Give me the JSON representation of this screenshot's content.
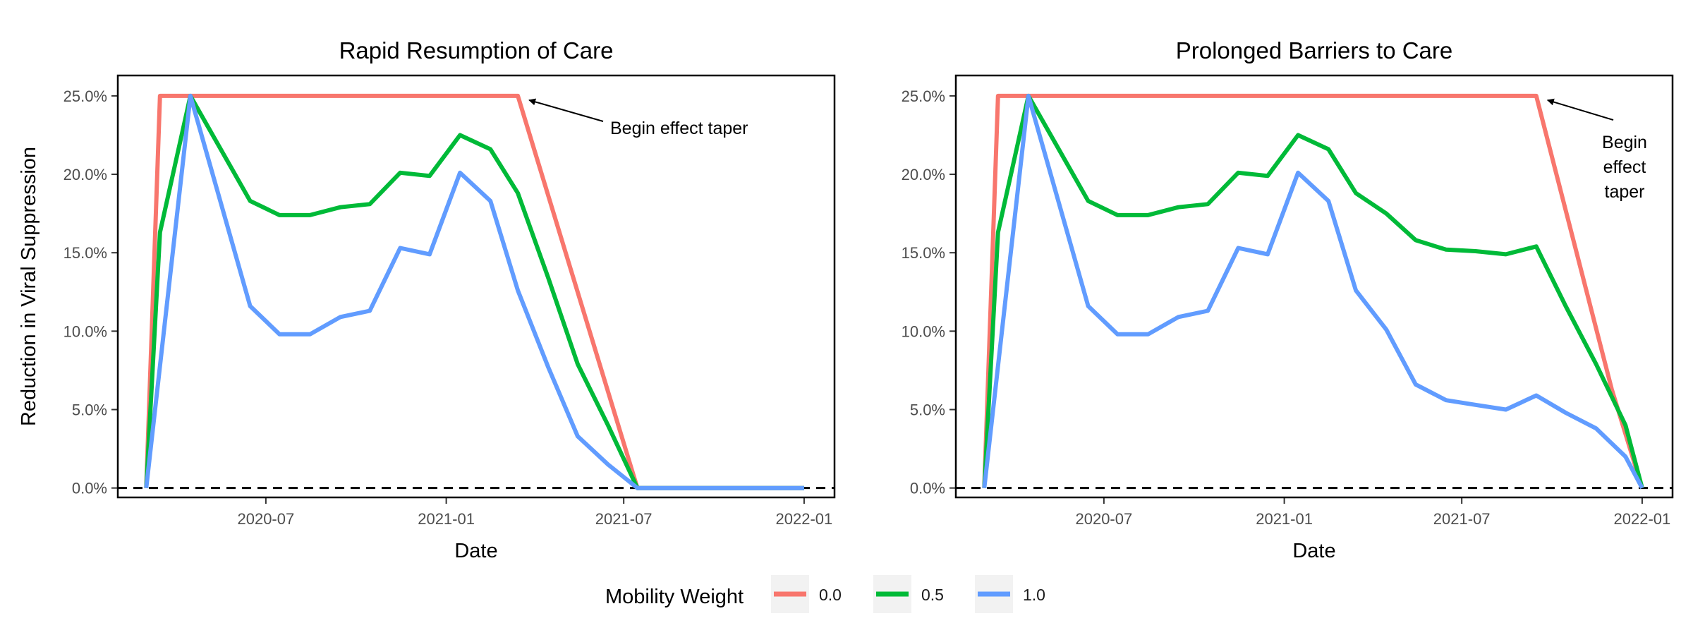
{
  "chart_data": [
    {
      "type": "line",
      "title": "Rapid Resumption of Care",
      "xlabel": "Date",
      "ylabel": "Reduction in Viral Suppression",
      "x_ticks": [
        "2020-07",
        "2021-01",
        "2021-07",
        "2022-01"
      ],
      "y_ticks": [
        "0.0%",
        "5.0%",
        "10.0%",
        "15.0%",
        "20.0%",
        "25.0%"
      ],
      "xlim": [
        "2020-02-01",
        "2022-02-01"
      ],
      "ylim": [
        -0.6,
        26.3
      ],
      "reference_line": {
        "y": 0,
        "style": "dashed"
      },
      "annotation": {
        "lines": [
          "Begin effect taper"
        ],
        "arrow_to": {
          "x": "2021-03-15",
          "y": 25.0
        }
      },
      "series": [
        {
          "name": "0.0",
          "color": "#F8766D",
          "x": [
            "2020-03-01",
            "2020-03-15",
            "2021-03-15",
            "2021-07-15",
            "2022-01-01"
          ],
          "y": [
            0,
            25.0,
            25.0,
            0,
            0
          ]
        },
        {
          "name": "0.5",
          "color": "#00BA38",
          "x": [
            "2020-03-01",
            "2020-03-15",
            "2020-04-15",
            "2020-06-15",
            "2020-07-15",
            "2020-08-15",
            "2020-09-15",
            "2020-10-15",
            "2020-11-15",
            "2020-12-15",
            "2021-01-15",
            "2021-02-15",
            "2021-03-15",
            "2021-04-15",
            "2021-05-15",
            "2021-06-15",
            "2021-07-15",
            "2022-01-01"
          ],
          "y": [
            0,
            16.3,
            25.0,
            18.3,
            17.4,
            17.4,
            17.9,
            18.1,
            20.1,
            19.9,
            22.5,
            21.6,
            18.8,
            13.4,
            7.9,
            4.0,
            0,
            0
          ]
        },
        {
          "name": "1.0",
          "color": "#619CFF",
          "x": [
            "2020-03-01",
            "2020-04-15",
            "2020-06-15",
            "2020-07-15",
            "2020-08-15",
            "2020-09-15",
            "2020-10-15",
            "2020-11-15",
            "2020-12-15",
            "2021-01-15",
            "2021-02-15",
            "2021-03-15",
            "2021-04-15",
            "2021-05-15",
            "2021-06-15",
            "2021-07-15",
            "2022-01-01"
          ],
          "y": [
            0,
            25.0,
            11.6,
            9.8,
            9.8,
            10.9,
            11.3,
            15.3,
            14.9,
            20.1,
            18.3,
            12.6,
            7.7,
            3.3,
            1.5,
            0,
            0
          ]
        }
      ]
    },
    {
      "type": "line",
      "title": "Prolonged Barriers to Care",
      "xlabel": "Date",
      "ylabel": "",
      "x_ticks": [
        "2020-07",
        "2021-01",
        "2021-07",
        "2022-01"
      ],
      "y_ticks": [
        "0.0%",
        "5.0%",
        "10.0%",
        "15.0%",
        "20.0%",
        "25.0%"
      ],
      "xlim": [
        "2020-02-01",
        "2022-02-01"
      ],
      "ylim": [
        -0.6,
        26.3
      ],
      "reference_line": {
        "y": 0,
        "style": "dashed"
      },
      "annotation": {
        "lines": [
          "Begin",
          "effect",
          "taper"
        ],
        "arrow_to": {
          "x": "2021-09-15",
          "y": 25.0
        }
      },
      "series": [
        {
          "name": "0.0",
          "color": "#F8766D",
          "x": [
            "2020-03-01",
            "2020-03-15",
            "2021-09-15",
            "2021-12-01",
            "2022-01-01"
          ],
          "y": [
            0,
            25.0,
            25.0,
            6.3,
            0
          ]
        },
        {
          "name": "0.5",
          "color": "#00BA38",
          "x": [
            "2020-03-01",
            "2020-03-15",
            "2020-04-15",
            "2020-06-15",
            "2020-07-15",
            "2020-08-15",
            "2020-09-15",
            "2020-10-15",
            "2020-11-15",
            "2020-12-15",
            "2021-01-15",
            "2021-02-15",
            "2021-03-15",
            "2021-04-15",
            "2021-05-15",
            "2021-06-15",
            "2021-07-15",
            "2021-08-15",
            "2021-09-15",
            "2021-10-15",
            "2021-11-15",
            "2021-12-15",
            "2022-01-01"
          ],
          "y": [
            0,
            16.3,
            25.0,
            18.3,
            17.4,
            17.4,
            17.9,
            18.1,
            20.1,
            19.9,
            22.5,
            21.6,
            18.8,
            17.5,
            15.8,
            15.2,
            15.1,
            14.9,
            15.4,
            11.6,
            7.9,
            4.0,
            0
          ]
        },
        {
          "name": "1.0",
          "color": "#619CFF",
          "x": [
            "2020-03-01",
            "2020-04-15",
            "2020-06-15",
            "2020-07-15",
            "2020-08-15",
            "2020-09-15",
            "2020-10-15",
            "2020-11-15",
            "2020-12-15",
            "2021-01-15",
            "2021-02-15",
            "2021-03-15",
            "2021-04-15",
            "2021-05-15",
            "2021-06-15",
            "2021-07-15",
            "2021-08-15",
            "2021-09-15",
            "2021-10-15",
            "2021-11-15",
            "2021-12-15",
            "2022-01-01"
          ],
          "y": [
            0,
            25.0,
            11.6,
            9.8,
            9.8,
            10.9,
            11.3,
            15.3,
            14.9,
            20.1,
            18.3,
            12.6,
            10.1,
            6.6,
            5.6,
            5.3,
            5.0,
            5.9,
            4.8,
            3.8,
            2.0,
            0
          ]
        }
      ]
    }
  ],
  "legend": {
    "title": "Mobility Weight",
    "items": [
      {
        "label": "0.0",
        "color": "#F8766D"
      },
      {
        "label": "0.5",
        "color": "#00BA38"
      },
      {
        "label": "1.0",
        "color": "#619CFF"
      }
    ]
  }
}
